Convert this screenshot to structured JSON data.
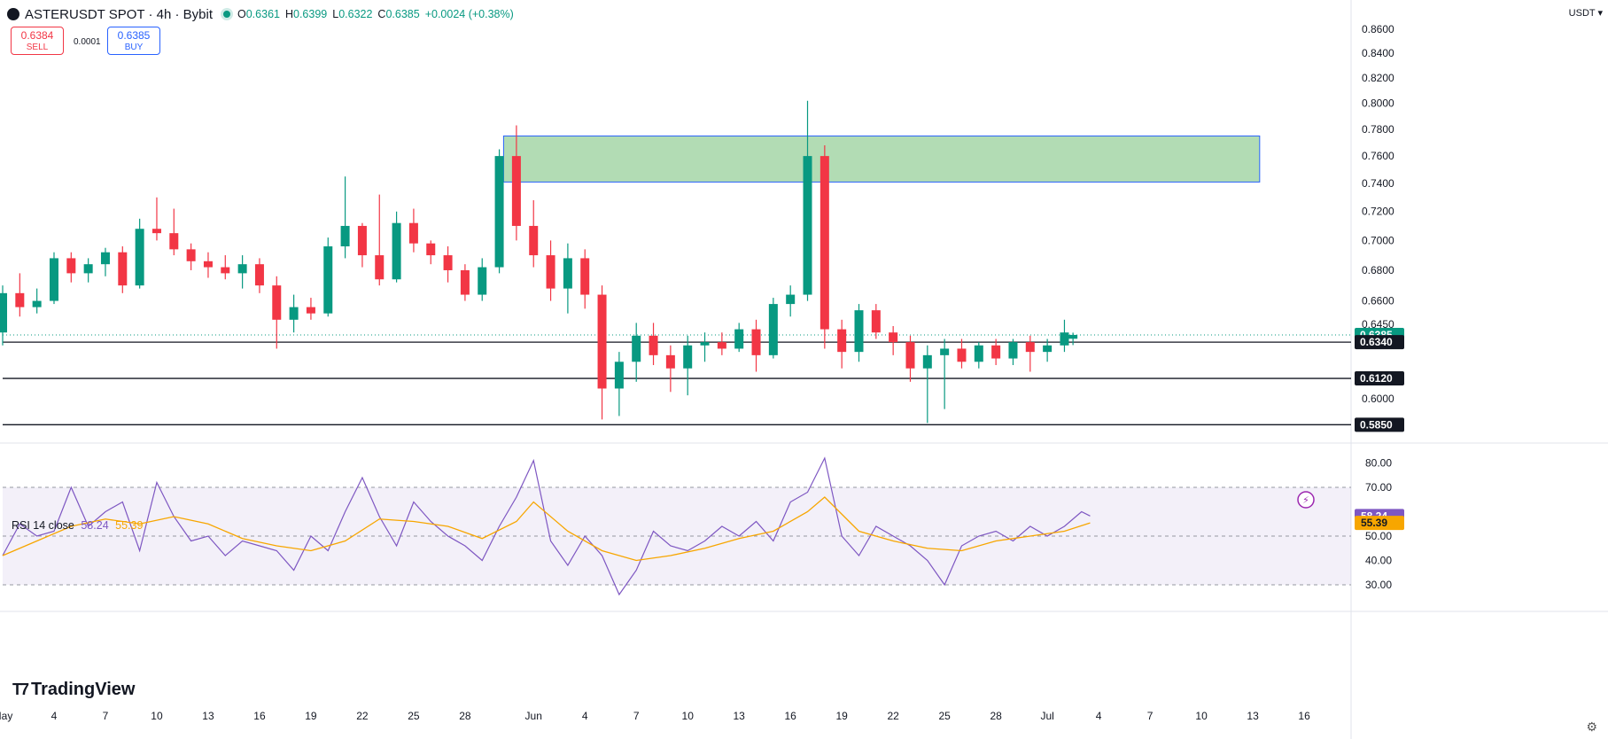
{
  "header": {
    "symbol": "ASTERUSDT SPOT · 4h · Bybit",
    "open_label": "O",
    "open": "0.6361",
    "high_label": "H",
    "high": "0.6399",
    "low_label": "L",
    "low": "0.6322",
    "close_label": "C",
    "close": "0.6385",
    "change": "+0.0024 (+0.38%)"
  },
  "trade": {
    "sell_price": "0.6384",
    "sell_label": "SELL",
    "spread": "0.0001",
    "buy_price": "0.6385",
    "buy_label": "BUY"
  },
  "currency": "USDT ▾",
  "branding": "TradingView",
  "colors": {
    "up": "#089981",
    "down": "#f23645",
    "rsi": "#7e57c2",
    "rsi_ma": "#f7a600",
    "zone": "#a5d6a7",
    "zone_border": "#2962ff"
  },
  "chart_data": [
    {
      "type": "candlestick",
      "symbol": "ASTERUSDT SPOT",
      "interval": "4h",
      "exchange": "Bybit",
      "y_axis_scale": "log",
      "y_ticks": [
        "0.8600",
        "0.8400",
        "0.8200",
        "0.8000",
        "0.7800",
        "0.7600",
        "0.7400",
        "0.7200",
        "0.7000",
        "0.6800",
        "0.6600",
        "0.6450",
        "0.6000"
      ],
      "x_ticks": [
        {
          "label": "May",
          "day": 1
        },
        {
          "label": "4",
          "day": 4
        },
        {
          "label": "7",
          "day": 7
        },
        {
          "label": "10",
          "day": 10
        },
        {
          "label": "13",
          "day": 13
        },
        {
          "label": "16",
          "day": 16
        },
        {
          "label": "19",
          "day": 19
        },
        {
          "label": "22",
          "day": 22
        },
        {
          "label": "25",
          "day": 25
        },
        {
          "label": "28",
          "day": 28
        },
        {
          "label": "Jun",
          "day": 32
        },
        {
          "label": "4",
          "day": 35
        },
        {
          "label": "7",
          "day": 38
        },
        {
          "label": "10",
          "day": 41
        },
        {
          "label": "13",
          "day": 44
        },
        {
          "label": "16",
          "day": 47
        },
        {
          "label": "19",
          "day": 50
        },
        {
          "label": "22",
          "day": 53
        },
        {
          "label": "25",
          "day": 56
        },
        {
          "label": "28",
          "day": 59
        },
        {
          "label": "Jul",
          "day": 62
        },
        {
          "label": "4",
          "day": 65
        },
        {
          "label": "7",
          "day": 68
        },
        {
          "label": "10",
          "day": 71
        },
        {
          "label": "13",
          "day": 74
        },
        {
          "label": "16",
          "day": 77
        }
      ],
      "price_labels": [
        {
          "text": "0.6385",
          "value": 0.6385,
          "style": "current"
        },
        {
          "text": "0.6340",
          "value": 0.634,
          "style": "level"
        },
        {
          "text": "0.6120",
          "value": 0.612,
          "style": "level"
        },
        {
          "text": "0.5850",
          "value": 0.585,
          "style": "level"
        }
      ],
      "horizontal_levels": [
        0.634,
        0.612,
        0.585
      ],
      "zone": {
        "day_start": 30.25,
        "day_end": 74.4,
        "price_low": 0.741,
        "price_high": 0.775
      },
      "ohlc_series": [
        {
          "day": 1,
          "o": 0.64,
          "h": 0.67,
          "l": 0.632,
          "c": 0.665
        },
        {
          "day": 2,
          "o": 0.665,
          "h": 0.678,
          "l": 0.65,
          "c": 0.656
        },
        {
          "day": 3,
          "o": 0.656,
          "h": 0.668,
          "l": 0.652,
          "c": 0.66
        },
        {
          "day": 4,
          "o": 0.66,
          "h": 0.692,
          "l": 0.658,
          "c": 0.688
        },
        {
          "day": 5,
          "o": 0.688,
          "h": 0.692,
          "l": 0.672,
          "c": 0.678
        },
        {
          "day": 6,
          "o": 0.678,
          "h": 0.688,
          "l": 0.672,
          "c": 0.684
        },
        {
          "day": 7,
          "o": 0.684,
          "h": 0.695,
          "l": 0.676,
          "c": 0.692
        },
        {
          "day": 8,
          "o": 0.692,
          "h": 0.696,
          "l": 0.665,
          "c": 0.67
        },
        {
          "day": 9,
          "o": 0.67,
          "h": 0.715,
          "l": 0.668,
          "c": 0.708
        },
        {
          "day": 10,
          "o": 0.708,
          "h": 0.73,
          "l": 0.7,
          "c": 0.705
        },
        {
          "day": 11,
          "o": 0.705,
          "h": 0.722,
          "l": 0.69,
          "c": 0.694
        },
        {
          "day": 12,
          "o": 0.694,
          "h": 0.698,
          "l": 0.68,
          "c": 0.686
        },
        {
          "day": 13,
          "o": 0.686,
          "h": 0.692,
          "l": 0.675,
          "c": 0.682
        },
        {
          "day": 14,
          "o": 0.682,
          "h": 0.69,
          "l": 0.674,
          "c": 0.678
        },
        {
          "day": 15,
          "o": 0.678,
          "h": 0.69,
          "l": 0.668,
          "c": 0.684
        },
        {
          "day": 16,
          "o": 0.684,
          "h": 0.688,
          "l": 0.665,
          "c": 0.67
        },
        {
          "day": 17,
          "o": 0.67,
          "h": 0.676,
          "l": 0.63,
          "c": 0.648
        },
        {
          "day": 18,
          "o": 0.648,
          "h": 0.664,
          "l": 0.64,
          "c": 0.656
        },
        {
          "day": 19,
          "o": 0.656,
          "h": 0.662,
          "l": 0.648,
          "c": 0.652
        },
        {
          "day": 20,
          "o": 0.652,
          "h": 0.702,
          "l": 0.65,
          "c": 0.696
        },
        {
          "day": 21,
          "o": 0.696,
          "h": 0.745,
          "l": 0.688,
          "c": 0.71
        },
        {
          "day": 22,
          "o": 0.71,
          "h": 0.712,
          "l": 0.682,
          "c": 0.69
        },
        {
          "day": 23,
          "o": 0.69,
          "h": 0.732,
          "l": 0.67,
          "c": 0.674
        },
        {
          "day": 24,
          "o": 0.674,
          "h": 0.72,
          "l": 0.672,
          "c": 0.712
        },
        {
          "day": 25,
          "o": 0.712,
          "h": 0.722,
          "l": 0.692,
          "c": 0.698
        },
        {
          "day": 26,
          "o": 0.698,
          "h": 0.7,
          "l": 0.684,
          "c": 0.69
        },
        {
          "day": 27,
          "o": 0.69,
          "h": 0.696,
          "l": 0.672,
          "c": 0.68
        },
        {
          "day": 28,
          "o": 0.68,
          "h": 0.684,
          "l": 0.66,
          "c": 0.664
        },
        {
          "day": 29,
          "o": 0.664,
          "h": 0.688,
          "l": 0.66,
          "c": 0.682
        },
        {
          "day": 30,
          "o": 0.682,
          "h": 0.765,
          "l": 0.678,
          "c": 0.76
        },
        {
          "day": 31,
          "o": 0.76,
          "h": 0.783,
          "l": 0.7,
          "c": 0.71
        },
        {
          "day": 32,
          "o": 0.71,
          "h": 0.728,
          "l": 0.682,
          "c": 0.69
        },
        {
          "day": 33,
          "o": 0.69,
          "h": 0.7,
          "l": 0.66,
          "c": 0.668
        },
        {
          "day": 34,
          "o": 0.668,
          "h": 0.698,
          "l": 0.652,
          "c": 0.688
        },
        {
          "day": 35,
          "o": 0.688,
          "h": 0.694,
          "l": 0.655,
          "c": 0.664
        },
        {
          "day": 36,
          "o": 0.664,
          "h": 0.67,
          "l": 0.588,
          "c": 0.606
        },
        {
          "day": 37,
          "o": 0.606,
          "h": 0.628,
          "l": 0.59,
          "c": 0.622
        },
        {
          "day": 38,
          "o": 0.622,
          "h": 0.646,
          "l": 0.61,
          "c": 0.638
        },
        {
          "day": 39,
          "o": 0.638,
          "h": 0.646,
          "l": 0.62,
          "c": 0.626
        },
        {
          "day": 40,
          "o": 0.626,
          "h": 0.632,
          "l": 0.604,
          "c": 0.618
        },
        {
          "day": 41,
          "o": 0.618,
          "h": 0.638,
          "l": 0.602,
          "c": 0.632
        },
        {
          "day": 42,
          "o": 0.632,
          "h": 0.64,
          "l": 0.622,
          "c": 0.634
        },
        {
          "day": 43,
          "o": 0.634,
          "h": 0.64,
          "l": 0.626,
          "c": 0.63
        },
        {
          "day": 44,
          "o": 0.63,
          "h": 0.646,
          "l": 0.628,
          "c": 0.642
        },
        {
          "day": 45,
          "o": 0.642,
          "h": 0.648,
          "l": 0.616,
          "c": 0.626
        },
        {
          "day": 46,
          "o": 0.626,
          "h": 0.662,
          "l": 0.624,
          "c": 0.658
        },
        {
          "day": 47,
          "o": 0.658,
          "h": 0.67,
          "l": 0.65,
          "c": 0.664
        },
        {
          "day": 48,
          "o": 0.664,
          "h": 0.802,
          "l": 0.66,
          "c": 0.76
        },
        {
          "day": 49,
          "o": 0.76,
          "h": 0.768,
          "l": 0.63,
          "c": 0.642
        },
        {
          "day": 50,
          "o": 0.642,
          "h": 0.648,
          "l": 0.618,
          "c": 0.628
        },
        {
          "day": 51,
          "o": 0.628,
          "h": 0.658,
          "l": 0.622,
          "c": 0.654
        },
        {
          "day": 52,
          "o": 0.654,
          "h": 0.658,
          "l": 0.636,
          "c": 0.64
        },
        {
          "day": 53,
          "o": 0.64,
          "h": 0.644,
          "l": 0.626,
          "c": 0.634
        },
        {
          "day": 54,
          "o": 0.634,
          "h": 0.638,
          "l": 0.61,
          "c": 0.618
        },
        {
          "day": 55,
          "o": 0.618,
          "h": 0.632,
          "l": 0.586,
          "c": 0.626
        },
        {
          "day": 56,
          "o": 0.626,
          "h": 0.636,
          "l": 0.594,
          "c": 0.63
        },
        {
          "day": 57,
          "o": 0.63,
          "h": 0.636,
          "l": 0.618,
          "c": 0.622
        },
        {
          "day": 58,
          "o": 0.622,
          "h": 0.634,
          "l": 0.618,
          "c": 0.632
        },
        {
          "day": 59,
          "o": 0.632,
          "h": 0.636,
          "l": 0.62,
          "c": 0.624
        },
        {
          "day": 60,
          "o": 0.624,
          "h": 0.636,
          "l": 0.62,
          "c": 0.634
        },
        {
          "day": 61,
          "o": 0.634,
          "h": 0.638,
          "l": 0.616,
          "c": 0.628
        },
        {
          "day": 62,
          "o": 0.628,
          "h": 0.636,
          "l": 0.622,
          "c": 0.632
        },
        {
          "day": 63,
          "o": 0.632,
          "h": 0.648,
          "l": 0.628,
          "c": 0.64
        },
        {
          "day": 63.5,
          "o": 0.6361,
          "h": 0.6399,
          "l": 0.6322,
          "c": 0.6385
        }
      ]
    },
    {
      "type": "line",
      "title": "RSI 14 close",
      "ylim": [
        25,
        85
      ],
      "y_ticks": [
        "80.00",
        "70.00",
        "50.00",
        "40.00",
        "30.00"
      ],
      "levels": [
        70,
        50,
        30
      ],
      "value_labels": [
        {
          "text": "58.24",
          "value": 58.24,
          "series": "RSI"
        },
        {
          "text": "55.39",
          "value": 55.39,
          "series": "RSI-based MA"
        }
      ],
      "series": [
        {
          "name": "RSI",
          "values": [
            {
              "day": 0,
              "v": 42
            },
            {
              "day": 1,
              "v": 55
            },
            {
              "day": 2,
              "v": 50
            },
            {
              "day": 3,
              "v": 52
            },
            {
              "day": 4,
              "v": 70
            },
            {
              "day": 5,
              "v": 54
            },
            {
              "day": 6,
              "v": 60
            },
            {
              "day": 7,
              "v": 64
            },
            {
              "day": 8,
              "v": 44
            },
            {
              "day": 9,
              "v": 72
            },
            {
              "day": 10,
              "v": 58
            },
            {
              "day": 11,
              "v": 48
            },
            {
              "day": 12,
              "v": 50
            },
            {
              "day": 13,
              "v": 42
            },
            {
              "day": 14,
              "v": 48
            },
            {
              "day": 15,
              "v": 46
            },
            {
              "day": 16,
              "v": 44
            },
            {
              "day": 17,
              "v": 36
            },
            {
              "day": 18,
              "v": 50
            },
            {
              "day": 19,
              "v": 44
            },
            {
              "day": 20,
              "v": 60
            },
            {
              "day": 21,
              "v": 74
            },
            {
              "day": 22,
              "v": 58
            },
            {
              "day": 23,
              "v": 46
            },
            {
              "day": 24,
              "v": 64
            },
            {
              "day": 25,
              "v": 56
            },
            {
              "day": 26,
              "v": 50
            },
            {
              "day": 27,
              "v": 46
            },
            {
              "day": 28,
              "v": 40
            },
            {
              "day": 29,
              "v": 54
            },
            {
              "day": 30,
              "v": 66
            },
            {
              "day": 31,
              "v": 81
            },
            {
              "day": 32,
              "v": 48
            },
            {
              "day": 33,
              "v": 38
            },
            {
              "day": 34,
              "v": 50
            },
            {
              "day": 35,
              "v": 42
            },
            {
              "day": 36,
              "v": 26
            },
            {
              "day": 37,
              "v": 36
            },
            {
              "day": 38,
              "v": 52
            },
            {
              "day": 39,
              "v": 46
            },
            {
              "day": 40,
              "v": 44
            },
            {
              "day": 41,
              "v": 48
            },
            {
              "day": 42,
              "v": 54
            },
            {
              "day": 43,
              "v": 50
            },
            {
              "day": 44,
              "v": 56
            },
            {
              "day": 45,
              "v": 48
            },
            {
              "day": 46,
              "v": 64
            },
            {
              "day": 47,
              "v": 68
            },
            {
              "day": 48,
              "v": 82
            },
            {
              "day": 49,
              "v": 50
            },
            {
              "day": 50,
              "v": 42
            },
            {
              "day": 51,
              "v": 54
            },
            {
              "day": 52,
              "v": 50
            },
            {
              "day": 53,
              "v": 46
            },
            {
              "day": 54,
              "v": 40
            },
            {
              "day": 55,
              "v": 30
            },
            {
              "day": 56,
              "v": 46
            },
            {
              "day": 57,
              "v": 50
            },
            {
              "day": 58,
              "v": 52
            },
            {
              "day": 59,
              "v": 48
            },
            {
              "day": 60,
              "v": 54
            },
            {
              "day": 61,
              "v": 50
            },
            {
              "day": 62,
              "v": 54
            },
            {
              "day": 63,
              "v": 60
            },
            {
              "day": 63.5,
              "v": 58.24
            }
          ]
        },
        {
          "name": "RSI-based MA",
          "values": [
            {
              "day": 0,
              "v": 42
            },
            {
              "day": 2,
              "v": 48
            },
            {
              "day": 4,
              "v": 54
            },
            {
              "day": 6,
              "v": 57
            },
            {
              "day": 8,
              "v": 55
            },
            {
              "day": 10,
              "v": 58
            },
            {
              "day": 12,
              "v": 55
            },
            {
              "day": 14,
              "v": 49
            },
            {
              "day": 16,
              "v": 46
            },
            {
              "day": 18,
              "v": 44
            },
            {
              "day": 20,
              "v": 48
            },
            {
              "day": 22,
              "v": 57
            },
            {
              "day": 24,
              "v": 56
            },
            {
              "day": 26,
              "v": 54
            },
            {
              "day": 28,
              "v": 49
            },
            {
              "day": 30,
              "v": 56
            },
            {
              "day": 31,
              "v": 64
            },
            {
              "day": 33,
              "v": 52
            },
            {
              "day": 35,
              "v": 44
            },
            {
              "day": 37,
              "v": 40
            },
            {
              "day": 39,
              "v": 42
            },
            {
              "day": 41,
              "v": 45
            },
            {
              "day": 43,
              "v": 49
            },
            {
              "day": 45,
              "v": 52
            },
            {
              "day": 47,
              "v": 60
            },
            {
              "day": 48,
              "v": 66
            },
            {
              "day": 50,
              "v": 52
            },
            {
              "day": 52,
              "v": 48
            },
            {
              "day": 54,
              "v": 45
            },
            {
              "day": 56,
              "v": 44
            },
            {
              "day": 58,
              "v": 48
            },
            {
              "day": 60,
              "v": 50
            },
            {
              "day": 62,
              "v": 52
            },
            {
              "day": 63.5,
              "v": 55.39
            }
          ]
        }
      ]
    }
  ]
}
